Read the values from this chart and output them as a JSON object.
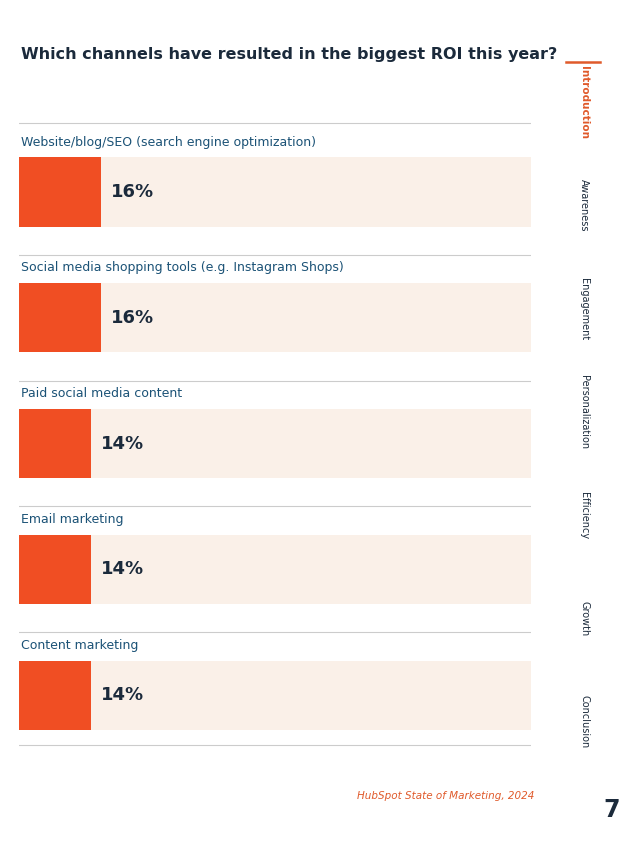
{
  "title": "Which channels have resulted in the biggest ROI this year?",
  "categories": [
    "Website/blog/SEO (search engine optimization)",
    "Social media shopping tools (e.g. Instagram Shops)",
    "Paid social media content",
    "Email marketing",
    "Content marketing"
  ],
  "values": [
    16,
    16,
    14,
    14,
    14
  ],
  "bar_color": "#F04E23",
  "bg_bar_color": "#FAF0E8",
  "title_color": "#1B2A3B",
  "label_color": "#1B5276",
  "value_color": "#1B2A3B",
  "source_text": "HubSpot State of Marketing, 2024",
  "source_color": "#E05A2B",
  "sidebar_labels": [
    "Introduction",
    "Awareness",
    "Engagement",
    "Personalization",
    "Efficiency",
    "Growth",
    "Conclusion"
  ],
  "sidebar_highlight": "Introduction",
  "sidebar_highlight_color": "#E05A2B",
  "sidebar_text_color": "#1B2A3B",
  "page_number": "7",
  "page_number_color": "#1B2A3B",
  "background_color": "#FFFFFF",
  "sidebar_bg_color": "#F2F2F2",
  "bar_height": 0.55,
  "separator_color": "#CCCCCC"
}
